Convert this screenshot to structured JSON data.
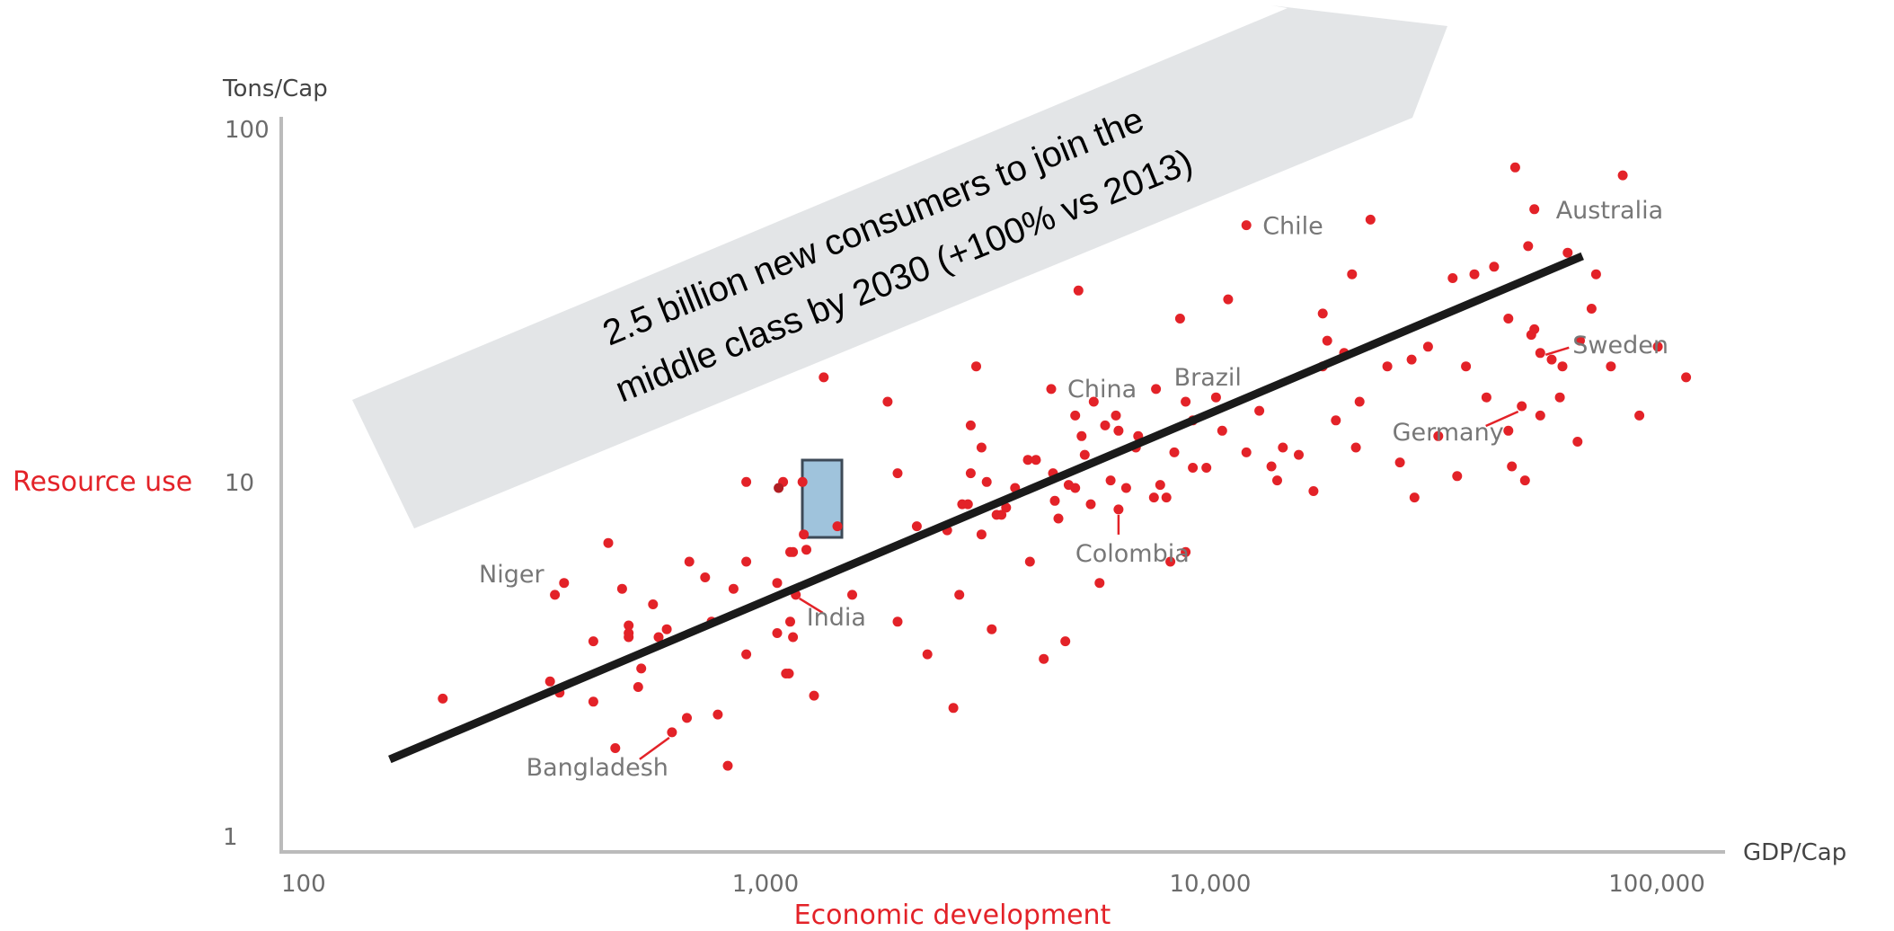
{
  "chart_data": {
    "type": "scatter",
    "x_scale": "log",
    "y_scale": "log",
    "xlim": [
      100,
      100000
    ],
    "ylim": [
      1,
      100
    ],
    "x_ticks": [
      "100",
      "1,000",
      "10,000",
      "100,000"
    ],
    "y_ticks": [
      "1",
      "10",
      "100"
    ],
    "x_unit": "GDP/Cap",
    "y_unit": "Tons/Cap",
    "xlabel": "Economic development",
    "ylabel": "Resource use",
    "grid": false,
    "colors": {
      "points": "#e32228",
      "trend": "#1a1a1a",
      "axis": "#bbbbbb",
      "banner": "#e3e5e7",
      "highlight_fill": "#9fc3dc",
      "highlight_stroke": "#3d4a57"
    },
    "banner": {
      "line1": "2.5 billion new consumers to join the",
      "line2": "middle class by 2030 (+100% vs 2013)"
    },
    "trend_line": [
      [
        175,
        1.72
      ],
      [
        82000,
        45
      ]
    ],
    "highlight": {
      "x": 1300,
      "y": 10
    },
    "labeled_points": [
      {
        "label": "Chile",
        "x": 14500,
        "y": 55
      },
      {
        "label": "Australia",
        "x": 64000,
        "y": 61
      },
      {
        "label": "China",
        "x": 5300,
        "y": 19
      },
      {
        "label": "Brazil",
        "x": 9100,
        "y": 19
      },
      {
        "label": "Sweden",
        "x": 66000,
        "y": 24
      },
      {
        "label": "Germany",
        "x": 60000,
        "y": 17
      },
      {
        "label": "Colombia",
        "x": 7500,
        "y": 8.7
      },
      {
        "label": "Niger",
        "x": 410,
        "y": 5
      },
      {
        "label": "India",
        "x": 1420,
        "y": 5
      },
      {
        "label": "Bangladesh",
        "x": 750,
        "y": 2.05
      }
    ],
    "points": [
      [
        230,
        2.55
      ],
      [
        400,
        2.85
      ],
      [
        420,
        2.65
      ],
      [
        430,
        5.4
      ],
      [
        500,
        2.5
      ],
      [
        500,
        3.7
      ],
      [
        540,
        7
      ],
      [
        560,
        1.85
      ],
      [
        580,
        5.2
      ],
      [
        600,
        4.1
      ],
      [
        600,
        3.9
      ],
      [
        600,
        3.8
      ],
      [
        630,
        2.75
      ],
      [
        640,
        3.1
      ],
      [
        680,
        4.7
      ],
      [
        700,
        3.8
      ],
      [
        730,
        4
      ],
      [
        810,
        2.25
      ],
      [
        820,
        6.2
      ],
      [
        890,
        5.6
      ],
      [
        920,
        4.2
      ],
      [
        950,
        2.3
      ],
      [
        1000,
        1.65
      ],
      [
        1030,
        5.2
      ],
      [
        1100,
        3.4
      ],
      [
        1100,
        6.2
      ],
      [
        1100,
        10.4
      ],
      [
        1290,
        5.4
      ],
      [
        1290,
        3.9
      ],
      [
        1330,
        10.4
      ],
      [
        1350,
        3
      ],
      [
        1370,
        3
      ],
      [
        1380,
        6.6
      ],
      [
        1380,
        4.2
      ],
      [
        1400,
        3.8
      ],
      [
        1400,
        6.6
      ],
      [
        1470,
        10.4
      ],
      [
        1480,
        7.4
      ],
      [
        1500,
        6.7
      ],
      [
        1560,
        2.6
      ],
      [
        1640,
        20.5
      ],
      [
        1760,
        7.8
      ],
      [
        1900,
        5
      ],
      [
        2280,
        17.5
      ],
      [
        2400,
        4.2
      ],
      [
        2400,
        11
      ],
      [
        2650,
        7.8
      ],
      [
        2800,
        3.4
      ],
      [
        3100,
        7.6
      ],
      [
        3200,
        2.4
      ],
      [
        3300,
        5
      ],
      [
        3350,
        9
      ],
      [
        3450,
        9
      ],
      [
        3500,
        11
      ],
      [
        3500,
        15
      ],
      [
        3600,
        22
      ],
      [
        3700,
        13
      ],
      [
        3700,
        7.4
      ],
      [
        3800,
        10.4
      ],
      [
        3900,
        4
      ],
      [
        4000,
        8.4
      ],
      [
        4100,
        8.4
      ],
      [
        4200,
        8.8
      ],
      [
        4400,
        10
      ],
      [
        4700,
        12
      ],
      [
        4750,
        6.2
      ],
      [
        4900,
        12
      ],
      [
        5100,
        3.3
      ],
      [
        5350,
        11
      ],
      [
        5400,
        9.2
      ],
      [
        5500,
        8.2
      ],
      [
        5700,
        3.7
      ],
      [
        5800,
        10.2
      ],
      [
        6000,
        16
      ],
      [
        6000,
        10
      ],
      [
        6100,
        36
      ],
      [
        6200,
        14
      ],
      [
        6300,
        12.4
      ],
      [
        6500,
        9
      ],
      [
        6600,
        17.5
      ],
      [
        6800,
        5.4
      ],
      [
        7000,
        15
      ],
      [
        7200,
        10.5
      ],
      [
        7400,
        16
      ],
      [
        7500,
        14.5
      ],
      [
        7800,
        10
      ],
      [
        8200,
        13
      ],
      [
        8300,
        14
      ],
      [
        9000,
        9.4
      ],
      [
        9300,
        10.2
      ],
      [
        9600,
        9.4
      ],
      [
        9800,
        6.2
      ],
      [
        10000,
        12.6
      ],
      [
        10300,
        30
      ],
      [
        10600,
        6.6
      ],
      [
        10600,
        17.5
      ],
      [
        11000,
        15.5
      ],
      [
        11000,
        11.4
      ],
      [
        11800,
        11.4
      ],
      [
        12400,
        18
      ],
      [
        12800,
        14.5
      ],
      [
        13200,
        34
      ],
      [
        14500,
        12.6
      ],
      [
        15500,
        16.5
      ],
      [
        16500,
        11.5
      ],
      [
        17000,
        10.5
      ],
      [
        17500,
        13
      ],
      [
        19000,
        12.4
      ],
      [
        20500,
        9.8
      ],
      [
        21500,
        22
      ],
      [
        21500,
        31
      ],
      [
        22000,
        26
      ],
      [
        23000,
        15.5
      ],
      [
        24000,
        24
      ],
      [
        25000,
        40
      ],
      [
        25500,
        13
      ],
      [
        26000,
        17.5
      ],
      [
        27500,
        57
      ],
      [
        30000,
        22
      ],
      [
        32000,
        11.8
      ],
      [
        34000,
        23
      ],
      [
        34500,
        9.4
      ],
      [
        37000,
        25
      ],
      [
        39000,
        14
      ],
      [
        42000,
        39
      ],
      [
        43000,
        10.8
      ],
      [
        45000,
        22
      ],
      [
        47000,
        40
      ],
      [
        50000,
        18
      ],
      [
        52000,
        42
      ],
      [
        56000,
        30
      ],
      [
        56000,
        14.5
      ],
      [
        57000,
        11.5
      ],
      [
        58000,
        80
      ],
      [
        61000,
        10.5
      ],
      [
        62000,
        48
      ],
      [
        63000,
        27
      ],
      [
        64000,
        28
      ],
      [
        66000,
        16
      ],
      [
        70000,
        23
      ],
      [
        73000,
        18
      ],
      [
        74000,
        22
      ],
      [
        76000,
        46
      ],
      [
        80000,
        13.5
      ],
      [
        81000,
        26
      ],
      [
        86000,
        32
      ],
      [
        88000,
        40
      ],
      [
        95000,
        22
      ],
      [
        101000,
        76
      ],
      [
        110000,
        16
      ],
      [
        121000,
        25
      ],
      [
        140000,
        20.5
      ]
    ]
  }
}
